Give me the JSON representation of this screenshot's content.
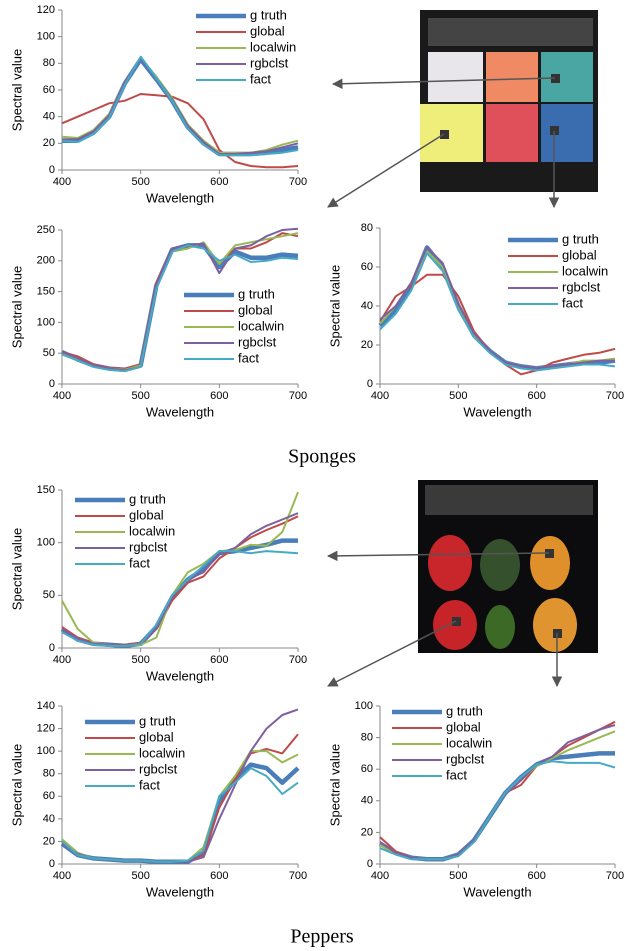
{
  "chart_data": [
    {
      "type": "line",
      "x_label": "Wavelength",
      "y_label": "Spectral value",
      "xlim": [
        400,
        700
      ],
      "xticks": [
        400,
        500,
        600,
        700
      ],
      "ylim": [
        0,
        120
      ],
      "yticks": [
        0,
        20,
        40,
        60,
        80,
        100,
        120
      ],
      "x": [
        400,
        420,
        440,
        460,
        480,
        500,
        520,
        540,
        560,
        580,
        600,
        620,
        640,
        660,
        680,
        700
      ],
      "series": [
        {
          "name": "g truth",
          "color": "#4a7ebb",
          "values": [
            22,
            22,
            28,
            40,
            65,
            83,
            68,
            52,
            32,
            20,
            12,
            12,
            12,
            13,
            15,
            17
          ]
        },
        {
          "name": "global",
          "color": "#be4b48",
          "values": [
            35,
            40,
            45,
            50,
            52,
            57,
            56,
            55,
            50,
            38,
            15,
            6,
            3,
            2,
            2,
            3
          ]
        },
        {
          "name": "localwin",
          "color": "#98b954",
          "values": [
            25,
            24,
            30,
            42,
            66,
            84,
            70,
            54,
            34,
            22,
            13,
            13,
            13,
            15,
            19,
            22
          ]
        },
        {
          "name": "rgbclst",
          "color": "#7d60a0",
          "values": [
            23,
            23,
            29,
            41,
            66,
            84,
            69,
            53,
            33,
            21,
            12,
            12,
            13,
            14,
            17,
            20
          ]
        },
        {
          "name": "fact",
          "color": "#46aac5",
          "values": [
            22,
            21,
            27,
            39,
            64,
            85,
            69,
            52,
            31,
            19,
            11,
            11,
            11,
            12,
            13,
            15
          ]
        }
      ]
    },
    {
      "type": "line",
      "x_label": "Wavelength",
      "y_label": "Spectral value",
      "xlim": [
        400,
        700
      ],
      "xticks": [
        400,
        500,
        600,
        700
      ],
      "ylim": [
        0,
        250
      ],
      "yticks": [
        0,
        50,
        100,
        150,
        200,
        250
      ],
      "x": [
        400,
        420,
        440,
        460,
        480,
        500,
        520,
        540,
        560,
        580,
        600,
        620,
        640,
        660,
        680,
        700
      ],
      "series": [
        {
          "name": "g truth",
          "color": "#4a7ebb",
          "values": [
            52,
            40,
            30,
            25,
            23,
            30,
            160,
            218,
            225,
            225,
            190,
            215,
            205,
            205,
            210,
            208
          ]
        },
        {
          "name": "global",
          "color": "#be4b48",
          "values": [
            52,
            45,
            32,
            26,
            25,
            32,
            165,
            220,
            223,
            228,
            195,
            220,
            220,
            230,
            245,
            240
          ]
        },
        {
          "name": "localwin",
          "color": "#98b954",
          "values": [
            50,
            40,
            30,
            25,
            23,
            30,
            158,
            215,
            220,
            230,
            195,
            225,
            230,
            235,
            240,
            245
          ]
        },
        {
          "name": "rgbclst",
          "color": "#7d60a0",
          "values": [
            52,
            42,
            30,
            25,
            22,
            28,
            162,
            220,
            225,
            228,
            180,
            220,
            225,
            240,
            250,
            252
          ]
        },
        {
          "name": "fact",
          "color": "#46aac5",
          "values": [
            48,
            38,
            28,
            23,
            21,
            28,
            155,
            215,
            225,
            220,
            200,
            210,
            198,
            200,
            205,
            203
          ]
        }
      ]
    },
    {
      "type": "line",
      "x_label": "Wavelength",
      "y_label": "Spectral value",
      "xlim": [
        400,
        700
      ],
      "xticks": [
        400,
        500,
        600,
        700
      ],
      "ylim": [
        0,
        80
      ],
      "yticks": [
        0,
        20,
        40,
        60,
        80
      ],
      "x": [
        400,
        420,
        440,
        460,
        480,
        500,
        520,
        540,
        560,
        580,
        600,
        620,
        640,
        660,
        680,
        700
      ],
      "series": [
        {
          "name": "g truth",
          "color": "#4a7ebb",
          "values": [
            30,
            38,
            50,
            70,
            60,
            40,
            25,
            17,
            11,
            9,
            8,
            9,
            10,
            11,
            11,
            12
          ]
        },
        {
          "name": "global",
          "color": "#be4b48",
          "values": [
            32,
            45,
            50,
            56,
            56,
            45,
            27,
            17,
            10,
            5,
            7,
            11,
            13,
            15,
            16,
            18
          ]
        },
        {
          "name": "localwin",
          "color": "#98b954",
          "values": [
            31,
            40,
            52,
            68,
            60,
            40,
            25,
            17,
            11,
            9,
            8,
            9,
            10,
            12,
            12,
            13
          ]
        },
        {
          "name": "rgbclst",
          "color": "#7d60a0",
          "values": [
            33,
            40,
            52,
            70,
            62,
            41,
            26,
            17,
            11,
            9,
            8,
            9,
            10,
            11,
            12,
            12
          ]
        },
        {
          "name": "fact",
          "color": "#46aac5",
          "values": [
            28,
            36,
            48,
            67,
            58,
            38,
            24,
            16,
            10,
            8,
            7,
            8,
            9,
            10,
            10,
            9
          ]
        }
      ]
    },
    {
      "type": "line",
      "x_label": "Wavelength",
      "y_label": "Spectral value",
      "xlim": [
        400,
        700
      ],
      "xticks": [
        400,
        500,
        600,
        700
      ],
      "ylim": [
        0,
        150
      ],
      "yticks": [
        0,
        50,
        100,
        150
      ],
      "x": [
        400,
        420,
        440,
        460,
        480,
        500,
        520,
        540,
        560,
        580,
        600,
        620,
        640,
        660,
        680,
        700
      ],
      "series": [
        {
          "name": "g truth",
          "color": "#4a7ebb",
          "values": [
            18,
            8,
            4,
            3,
            2,
            4,
            20,
            48,
            65,
            75,
            90,
            92,
            95,
            98,
            102,
            102
          ]
        },
        {
          "name": "global",
          "color": "#be4b48",
          "values": [
            20,
            10,
            5,
            3,
            3,
            5,
            18,
            45,
            62,
            68,
            85,
            95,
            105,
            112,
            118,
            125
          ]
        },
        {
          "name": "localwin",
          "color": "#98b954",
          "values": [
            45,
            18,
            5,
            3,
            2,
            3,
            10,
            50,
            72,
            80,
            92,
            93,
            98,
            97,
            110,
            148
          ]
        },
        {
          "name": "rgbclst",
          "color": "#7d60a0",
          "values": [
            18,
            9,
            4,
            3,
            2,
            4,
            18,
            48,
            65,
            72,
            90,
            95,
            108,
            116,
            122,
            128
          ]
        },
        {
          "name": "fact",
          "color": "#46aac5",
          "values": [
            15,
            7,
            3,
            2,
            2,
            4,
            22,
            50,
            65,
            78,
            92,
            92,
            90,
            92,
            91,
            90
          ]
        }
      ]
    },
    {
      "type": "line",
      "x_label": "Wavelength",
      "y_label": "Spectral value",
      "xlim": [
        400,
        700
      ],
      "xticks": [
        400,
        500,
        600,
        700
      ],
      "ylim": [
        0,
        140
      ],
      "yticks": [
        0,
        20,
        40,
        60,
        80,
        100,
        120,
        140
      ],
      "x": [
        400,
        420,
        440,
        460,
        480,
        500,
        520,
        540,
        560,
        580,
        600,
        620,
        640,
        660,
        680,
        700
      ],
      "series": [
        {
          "name": "g truth",
          "color": "#4a7ebb",
          "values": [
            18,
            8,
            5,
            4,
            3,
            3,
            2,
            2,
            2,
            10,
            55,
            75,
            88,
            85,
            72,
            85
          ]
        },
        {
          "name": "global",
          "color": "#be4b48",
          "values": [
            18,
            9,
            5,
            4,
            3,
            3,
            2,
            2,
            2,
            8,
            50,
            75,
            98,
            102,
            98,
            115
          ]
        },
        {
          "name": "localwin",
          "color": "#98b954",
          "values": [
            22,
            10,
            5,
            4,
            3,
            3,
            2,
            2,
            3,
            15,
            60,
            78,
            100,
            100,
            90,
            97
          ]
        },
        {
          "name": "rgbclst",
          "color": "#7d60a0",
          "values": [
            18,
            9,
            5,
            4,
            3,
            3,
            2,
            2,
            2,
            6,
            40,
            70,
            100,
            120,
            132,
            137
          ]
        },
        {
          "name": "fact",
          "color": "#46aac5",
          "values": [
            20,
            8,
            5,
            4,
            3,
            3,
            2,
            2,
            3,
            12,
            60,
            72,
            85,
            78,
            62,
            72
          ]
        }
      ]
    },
    {
      "type": "line",
      "x_label": "Wavelength",
      "y_label": "Spectral value",
      "xlim": [
        400,
        700
      ],
      "xticks": [
        400,
        500,
        600,
        700
      ],
      "ylim": [
        0,
        100
      ],
      "yticks": [
        0,
        20,
        40,
        60,
        80,
        100
      ],
      "x": [
        400,
        420,
        440,
        460,
        480,
        500,
        520,
        540,
        560,
        580,
        600,
        620,
        640,
        660,
        680,
        700
      ],
      "series": [
        {
          "name": "g truth",
          "color": "#4a7ebb",
          "values": [
            13,
            7,
            4,
            3,
            3,
            6,
            15,
            30,
            45,
            55,
            63,
            67,
            68,
            69,
            70,
            70
          ]
        },
        {
          "name": "global",
          "color": "#be4b48",
          "values": [
            17,
            8,
            4,
            3,
            3,
            6,
            15,
            30,
            45,
            50,
            62,
            68,
            75,
            80,
            85,
            90
          ]
        },
        {
          "name": "localwin",
          "color": "#98b954",
          "values": [
            12,
            6,
            4,
            3,
            3,
            6,
            15,
            30,
            45,
            53,
            62,
            67,
            72,
            76,
            80,
            84
          ]
        },
        {
          "name": "rgbclst",
          "color": "#7d60a0",
          "values": [
            14,
            7,
            4,
            3,
            3,
            6,
            15,
            30,
            44,
            53,
            63,
            68,
            77,
            81,
            85,
            88
          ]
        },
        {
          "name": "fact",
          "color": "#46aac5",
          "values": [
            10,
            6,
            3,
            3,
            3,
            5,
            14,
            30,
            45,
            55,
            63,
            65,
            64,
            64,
            64,
            61
          ]
        }
      ]
    }
  ],
  "captions": [
    "Sponges",
    "Peppers"
  ]
}
